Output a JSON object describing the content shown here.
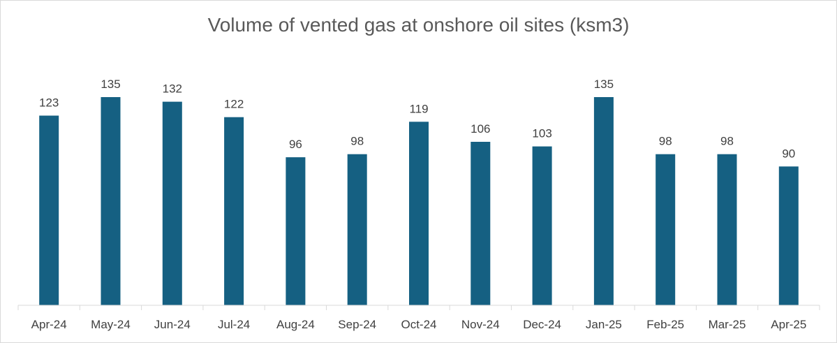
{
  "chart_data": {
    "type": "bar",
    "title": "Volume of vented gas at onshore oil sites (ksm3)",
    "xlabel": "",
    "ylabel": "",
    "categories": [
      "Apr-24",
      "May-24",
      "Jun-24",
      "Jul-24",
      "Aug-24",
      "Sep-24",
      "Oct-24",
      "Nov-24",
      "Dec-24",
      "Jan-25",
      "Feb-25",
      "Mar-25",
      "Apr-25"
    ],
    "series": [
      {
        "values": [
          123,
          135,
          132,
          122,
          96,
          98,
          119,
          106,
          103,
          135,
          98,
          98,
          90
        ]
      }
    ],
    "data_labels": [
      "123",
      "135",
      "132",
      "122",
      "96",
      "98",
      "119",
      "106",
      "103",
      "135",
      "98",
      "98",
      "90"
    ],
    "ylim": [
      0,
      135
    ],
    "grid": false,
    "legend": "none",
    "bar_color": "#156082",
    "axis_color": "#d9d9d9"
  }
}
